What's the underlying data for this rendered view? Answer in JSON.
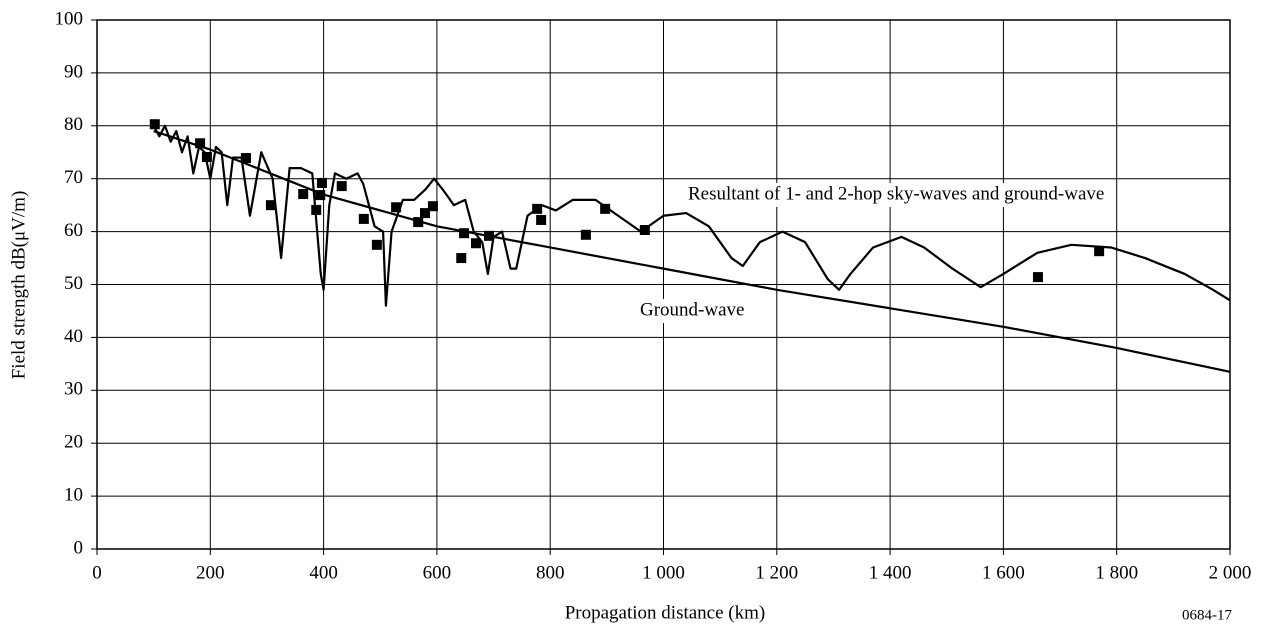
{
  "chart_data": {
    "type": "line",
    "x_label": "Propagation distance (km)",
    "y_label": "Field strength dB(μV/m)",
    "figure_id": "0684-17",
    "xlim": [
      0,
      2000
    ],
    "xticks": [
      0,
      200,
      400,
      600,
      800,
      {
        "value": 1000,
        "label": "1 000"
      },
      {
        "value": 1200,
        "label": "1 200"
      },
      {
        "value": 1400,
        "label": "1 400"
      },
      {
        "value": 1600,
        "label": "1 600"
      },
      {
        "value": 1800,
        "label": "1 800"
      },
      {
        "value": 2000,
        "label": "2 000"
      }
    ],
    "ylim": [
      0,
      100
    ],
    "yticks": [
      0,
      10,
      20,
      30,
      40,
      50,
      60,
      70,
      80,
      90,
      100
    ],
    "grid": true,
    "series": [
      {
        "name": "Resultant of 1- and 2-hop sky-waves and ground-wave",
        "style": "line",
        "color": "#000000",
        "x": [
          100,
          110,
          120,
          130,
          140,
          150,
          160,
          170,
          180,
          190,
          200,
          210,
          220,
          230,
          240,
          255,
          270,
          290,
          310,
          325,
          340,
          360,
          380,
          395,
          400,
          410,
          420,
          440,
          460,
          470,
          490,
          505,
          510,
          520,
          540,
          560,
          580,
          595,
          610,
          630,
          650,
          665,
          680,
          690,
          700,
          715,
          730,
          740,
          760,
          785,
          810,
          840,
          880,
          920,
          960,
          1000,
          1040,
          1080,
          1120,
          1140,
          1170,
          1210,
          1250,
          1290,
          1310,
          1330,
          1370,
          1420,
          1460,
          1510,
          1560,
          1600,
          1660,
          1720,
          1790,
          1850,
          1920,
          1970,
          2000
        ],
        "values": [
          80,
          78,
          80,
          77,
          79,
          75,
          78,
          71,
          76,
          75,
          70,
          76,
          75,
          65,
          74,
          74,
          63,
          75,
          70,
          55,
          72,
          72,
          71,
          52,
          49,
          65,
          71,
          70,
          71,
          69,
          61,
          60,
          46,
          60,
          66,
          66,
          68,
          70,
          68,
          65,
          66,
          60,
          58,
          52,
          59,
          60,
          53,
          53,
          63,
          65,
          64,
          66,
          66,
          63,
          60,
          63,
          63.5,
          61,
          55,
          53.5,
          58,
          60,
          58,
          51,
          49,
          52,
          57,
          59,
          57,
          53,
          49.5,
          52,
          56,
          57.5,
          57,
          55,
          52,
          49,
          47
        ]
      },
      {
        "name": "Ground-wave",
        "style": "line",
        "color": "#000000",
        "x": [
          100,
          200,
          400,
          600,
          800,
          1000,
          1200,
          1400,
          1600,
          1800,
          2000
        ],
        "values": [
          79,
          75.5,
          67,
          61,
          57,
          53,
          49,
          45.5,
          42,
          38,
          33.5
        ]
      },
      {
        "style": "markers",
        "color": "#000000",
        "x": [
          102,
          182,
          194,
          263,
          307,
          364,
          387,
          394,
          397,
          432,
          471,
          494,
          528,
          567,
          579,
          593,
          643,
          648,
          669,
          692,
          777,
          784,
          863,
          897,
          967,
          1661,
          1769
        ],
        "values": [
          80.3,
          76.7,
          74.1,
          73.9,
          65.0,
          67.1,
          64.1,
          66.9,
          69.2,
          68.6,
          62.4,
          57.5,
          64.6,
          61.8,
          63.5,
          64.8,
          55.0,
          59.7,
          57.8,
          59.2,
          64.3,
          62.2,
          59.4,
          64.3,
          60.3,
          51.4,
          56.3
        ]
      }
    ]
  }
}
